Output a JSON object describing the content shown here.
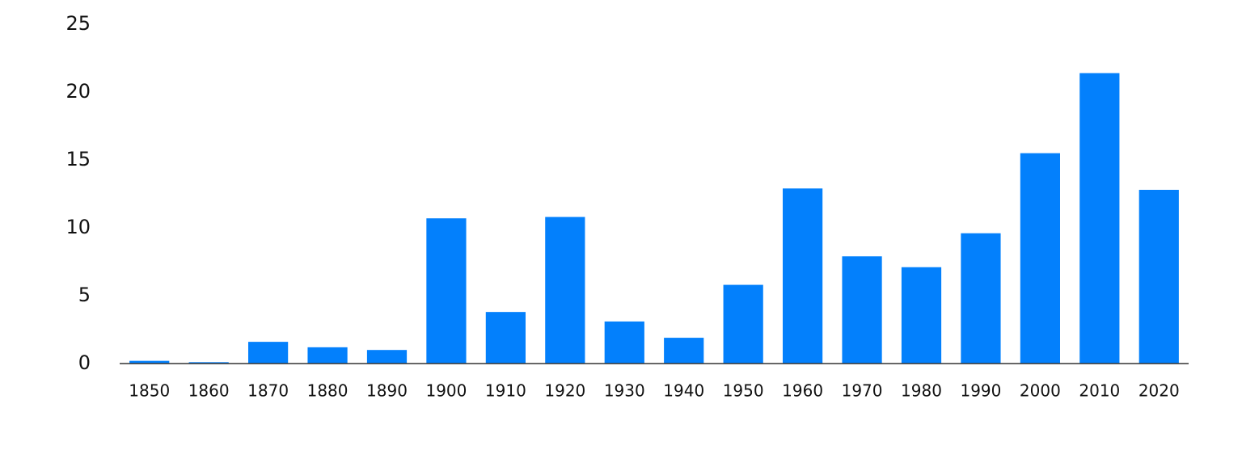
{
  "chart_data": {
    "type": "bar",
    "categories": [
      "1850",
      "1860",
      "1870",
      "1880",
      "1890",
      "1900",
      "1910",
      "1920",
      "1930",
      "1940",
      "1950",
      "1960",
      "1970",
      "1980",
      "1990",
      "2000",
      "2010",
      "2020"
    ],
    "values": [
      0.2,
      0.1,
      1.6,
      1.2,
      1.0,
      10.7,
      3.8,
      10.8,
      3.1,
      1.9,
      5.8,
      12.9,
      7.9,
      7.1,
      9.6,
      15.5,
      21.4,
      12.8
    ],
    "color": "#0380fc",
    "ylim": [
      0,
      25
    ],
    "yticks": [
      0,
      5,
      10,
      15,
      20,
      25
    ],
    "grid": false
  }
}
